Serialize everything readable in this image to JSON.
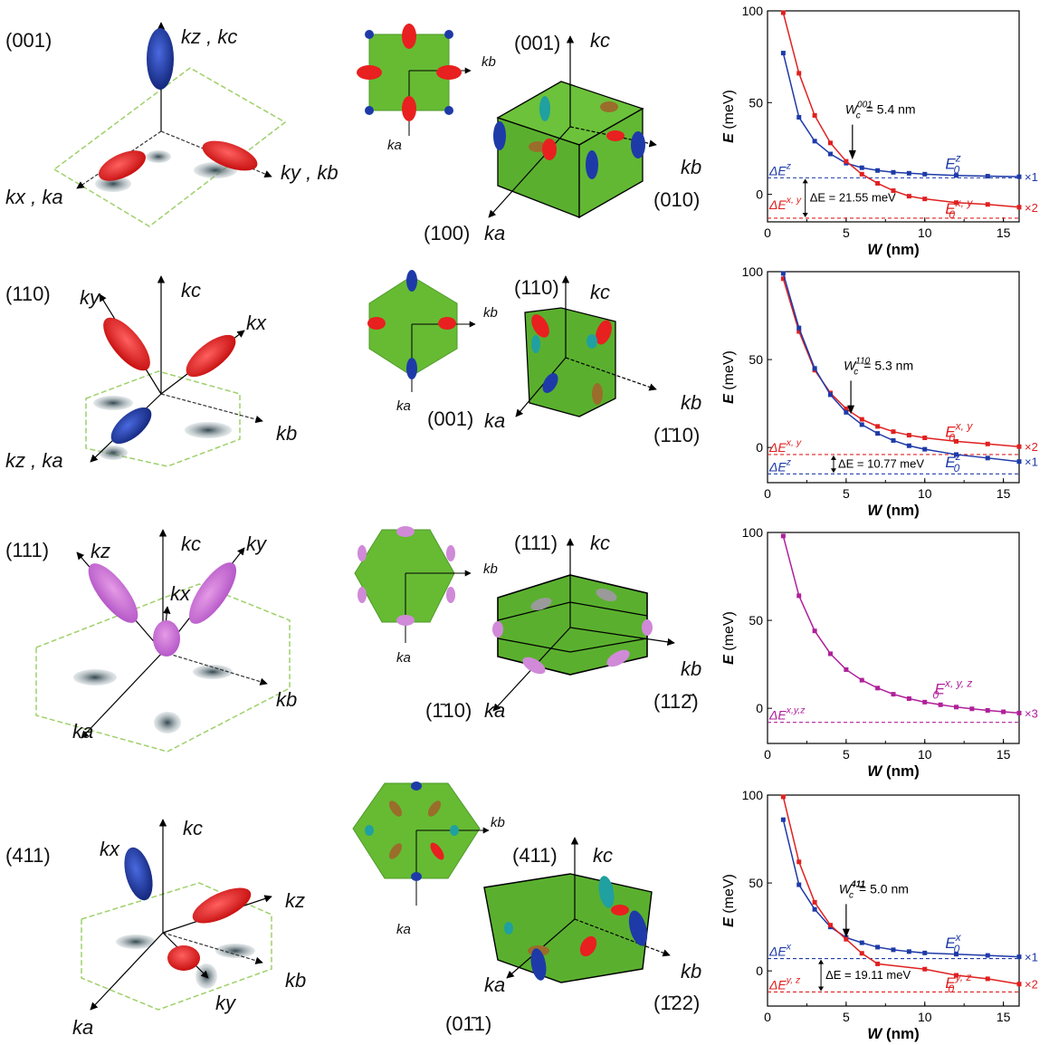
{
  "colors": {
    "red": "#e02020",
    "blue": "#1e3aa8",
    "magenta": "#b0209a",
    "green": "#66bb33",
    "shadow": "#3f5560",
    "dashed_green": "#9ed06a"
  },
  "rows": [
    {
      "orientation": "(001)",
      "left_axes": {
        "up": "kz , kc",
        "right": "ky , kb",
        "left": "kx , ka"
      },
      "bz_inset": {
        "b": "kb",
        "a": "ka"
      },
      "bz3d": {
        "face": "(001)",
        "c": "kc",
        "b": "kb",
        "a": "ka",
        "x_dir": "(100)",
        "y_dir": "(010)"
      },
      "annotations": {
        "Wc": "W",
        "Wc_sup": "001",
        "Wc_value": "= 5.4 nm",
        "dE": "ΔE = 21.55 meV",
        "top_label": "ΔE",
        "top_sup": "z",
        "bottom_label": "ΔE",
        "bottom_sup": "x, y",
        "curve_top_label": "E",
        "curve_top_sup": "z",
        "curve_bottom_label": "E",
        "curve_bottom_sup": "x, y",
        "mult_top": "×1",
        "mult_bottom": "×2"
      }
    },
    {
      "orientation": "(110)",
      "left_axes": {
        "up": "kc",
        "upleft": "ky",
        "upright": "kx",
        "right": "kb",
        "left": "kz , ka"
      },
      "bz_inset": {
        "b": "kb",
        "a": "ka"
      },
      "bz3d": {
        "face": "(110)",
        "c": "kc",
        "b": "kb",
        "a": "ka",
        "x_dir": "(001)",
        "y_dir": "(1̄10)"
      },
      "annotations": {
        "Wc": "W",
        "Wc_sup": "110",
        "Wc_value": "= 5.3 nm",
        "dE": "ΔE = 10.77 meV",
        "top_label": "ΔE",
        "top_sup": "x, y",
        "bottom_label": "ΔE",
        "bottom_sup": "z",
        "curve_top_label": "E",
        "curve_top_sup": "x, y",
        "curve_bottom_label": "E",
        "curve_bottom_sup": "z",
        "mult_top": "×2",
        "mult_bottom": "×1"
      }
    },
    {
      "orientation": "(111)",
      "left_axes": {
        "up": "kc",
        "upleft": "kz",
        "upright": "ky",
        "mid": "kx",
        "right": "kb",
        "left": "ka"
      },
      "bz_inset": {
        "b": "kb",
        "a": "ka"
      },
      "bz3d": {
        "face": "(111)",
        "c": "kc",
        "b": "kb",
        "a": "ka",
        "x_dir": "(1̄10)",
        "y_dir": "(112̄)"
      },
      "annotations": {
        "top_label": "ΔE",
        "top_sup": "x,y,z",
        "curve_label": "E",
        "curve_sup": "x, y, z",
        "mult": "×3"
      }
    },
    {
      "orientation": "(411)",
      "left_axes": {
        "up": "kc",
        "upleft": "kx",
        "upright": "kz",
        "right": "kb",
        "low": "ky",
        "left": "ka"
      },
      "bz_inset": {
        "b": "kb",
        "a": "ka"
      },
      "bz3d": {
        "face": "(411)",
        "c": "kc",
        "b": "kb",
        "a": "ka",
        "x_dir": "(01̄1)",
        "y_dir": "(1̄22)"
      },
      "annotations": {
        "Wc": "W",
        "Wc_sup": "411",
        "Wc_value": "= 5.0 nm",
        "dE": "ΔE = 19.11 meV",
        "top_label": "ΔE",
        "top_sup": "x",
        "bottom_label": "ΔE",
        "bottom_sup": "y, z",
        "curve_top_label": "E",
        "curve_top_sup": "x",
        "curve_bottom_label": "E",
        "curve_bottom_sup": "y, z",
        "mult_top": "×1",
        "mult_bottom": "×2"
      }
    }
  ],
  "chart_data": [
    {
      "type": "line",
      "xlabel": "W (nm)",
      "ylabel": "E (meV)",
      "xlim": [
        0,
        16
      ],
      "ylim": [
        -15,
        100
      ],
      "xticks": [
        0,
        5,
        10,
        15
      ],
      "yticks": [
        0,
        50,
        100
      ],
      "series": [
        {
          "name": "E0 z",
          "color": "blue",
          "x": [
            1,
            2,
            3,
            4,
            5,
            6,
            7,
            8,
            9,
            10,
            12,
            14,
            16
          ],
          "y": [
            77,
            42,
            29,
            22,
            17,
            14.5,
            13,
            12,
            11.5,
            11,
            10.3,
            9.9,
            9.6
          ],
          "mult": "×1"
        },
        {
          "name": "E0 x,y",
          "color": "red",
          "x": [
            1,
            2,
            3,
            4,
            5,
            6,
            7,
            8,
            9,
            10,
            12,
            14,
            16
          ],
          "y": [
            99,
            66,
            43,
            28,
            18,
            11,
            6,
            2,
            -1,
            -2.5,
            -4.5,
            -5.5,
            -7
          ],
          "mult": "×2"
        }
      ],
      "levels": [
        {
          "y": 9,
          "color": "blue"
        },
        {
          "y": -13,
          "color": "red"
        }
      ],
      "Wc": 5.4
    },
    {
      "type": "line",
      "xlabel": "W (nm)",
      "ylabel": "E (meV)",
      "xlim": [
        0,
        16
      ],
      "ylim": [
        -20,
        100
      ],
      "xticks": [
        0,
        5,
        10,
        15
      ],
      "yticks": [
        0,
        50,
        100
      ],
      "series": [
        {
          "name": "E0 x,y",
          "color": "red",
          "x": [
            1,
            2,
            3,
            4,
            5,
            6,
            7,
            8,
            9,
            10,
            12,
            14,
            16
          ],
          "y": [
            96,
            66,
            44,
            31,
            22,
            16,
            12,
            9,
            7,
            5.5,
            3.5,
            2,
            0.5
          ],
          "mult": "×2"
        },
        {
          "name": "E0 z",
          "color": "blue",
          "x": [
            1,
            2,
            3,
            4,
            5,
            6,
            7,
            8,
            9,
            10,
            12,
            14,
            16
          ],
          "y": [
            99,
            68,
            45,
            30,
            20,
            13,
            8,
            4,
            1,
            -1,
            -4,
            -6,
            -8
          ],
          "mult": "×1"
        }
      ],
      "levels": [
        {
          "y": -4,
          "color": "red"
        },
        {
          "y": -15,
          "color": "blue"
        }
      ],
      "Wc": 5.3
    },
    {
      "type": "line",
      "xlabel": "W (nm)",
      "ylabel": "E (meV)",
      "xlim": [
        0,
        16
      ],
      "ylim": [
        -20,
        100
      ],
      "xticks": [
        0,
        5,
        10,
        15
      ],
      "yticks": [
        0,
        50,
        100
      ],
      "series": [
        {
          "name": "E0 x,y,z",
          "color": "magenta",
          "x": [
            1,
            2,
            3,
            4,
            5,
            6,
            7,
            8,
            9,
            10,
            11,
            12,
            13,
            14,
            15,
            16
          ],
          "y": [
            98,
            64,
            44,
            31,
            22,
            16,
            11.5,
            8,
            5.5,
            3.5,
            2,
            0.7,
            -0.3,
            -1.2,
            -2,
            -2.7
          ],
          "mult": "×3"
        }
      ],
      "levels": [
        {
          "y": -8,
          "color": "magenta"
        }
      ]
    },
    {
      "type": "line",
      "xlabel": "W (nm)",
      "ylabel": "E (meV)",
      "xlim": [
        0,
        16
      ],
      "ylim": [
        -20,
        100
      ],
      "xticks": [
        0,
        5,
        10,
        15
      ],
      "yticks": [
        0,
        50,
        100
      ],
      "series": [
        {
          "name": "E0 x",
          "color": "blue",
          "x": [
            1,
            2,
            3,
            4,
            5,
            6,
            7,
            8,
            9,
            10,
            12,
            14,
            16
          ],
          "y": [
            86,
            49,
            35,
            25,
            19,
            16,
            13.5,
            12,
            11,
            10.2,
            9.5,
            8.8,
            8
          ],
          "mult": "×1"
        },
        {
          "name": "E0 y,z",
          "color": "red",
          "x": [
            1,
            2,
            3,
            4,
            5,
            6,
            7,
            10,
            12,
            14,
            16
          ],
          "y": [
            99,
            62,
            39,
            26,
            18,
            10,
            4,
            1,
            -2.5,
            -4.5,
            -7.5
          ],
          "mult": "×2"
        }
      ],
      "levels": [
        {
          "y": 7,
          "color": "blue"
        },
        {
          "y": -12,
          "color": "red"
        }
      ],
      "Wc": 5.0
    }
  ]
}
